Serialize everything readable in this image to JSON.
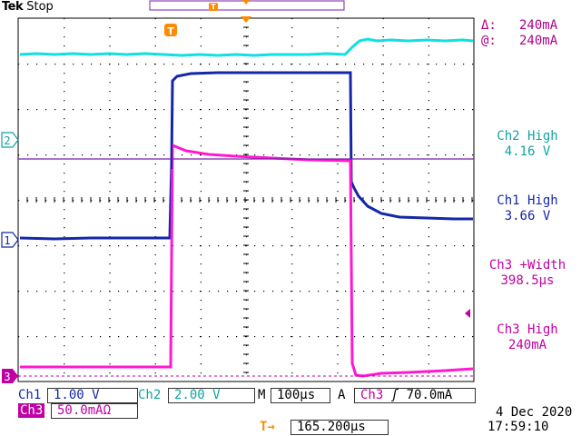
{
  "header": {
    "brand": "Tek",
    "run_state": "Stop",
    "trigger_marker": "T"
  },
  "cursors": {
    "delta_label": "Δ:",
    "delta_value": "240mA",
    "at_label": "@:",
    "at_value": "240mA"
  },
  "measurements": [
    {
      "name": "Ch2 High",
      "value": "4.16 V",
      "color": "#0fa3a3"
    },
    {
      "name": "Ch1 High",
      "value": "3.66 V",
      "color": "#1427a8"
    },
    {
      "name": "Ch3 +Width",
      "value": "398.5µs",
      "color": "#c000a4"
    },
    {
      "name": "Ch3 High",
      "value": "240mA",
      "color": "#c000a4"
    }
  ],
  "channel_markers": {
    "ch1": "1",
    "ch2": "2",
    "ch3": "3"
  },
  "settings": {
    "ch1_label": "Ch1",
    "ch1_scale": "1.00 V",
    "ch2_label": "Ch2",
    "ch2_scale": "2.00 V",
    "timebase_label": "M",
    "timebase": "100µs",
    "trigger_label": "A",
    "trigger_source": "Ch3",
    "trigger_slope": "ʃ",
    "trigger_level": "70.0mA",
    "ch3_label": "Ch3",
    "ch3_scale": "50.0mAΩ",
    "trigger_position_icon": "T→",
    "trigger_position": "165.200µs"
  },
  "timestamp": {
    "date": "4 Dec  2020",
    "time": "17:59:10"
  },
  "colors": {
    "ch1": "#1427a8",
    "ch2": "#0fe0e0",
    "ch3": "#ff18d0",
    "cursor": "#7a1ea8",
    "trigger": "#ff8a00",
    "grid": "#000000"
  }
}
